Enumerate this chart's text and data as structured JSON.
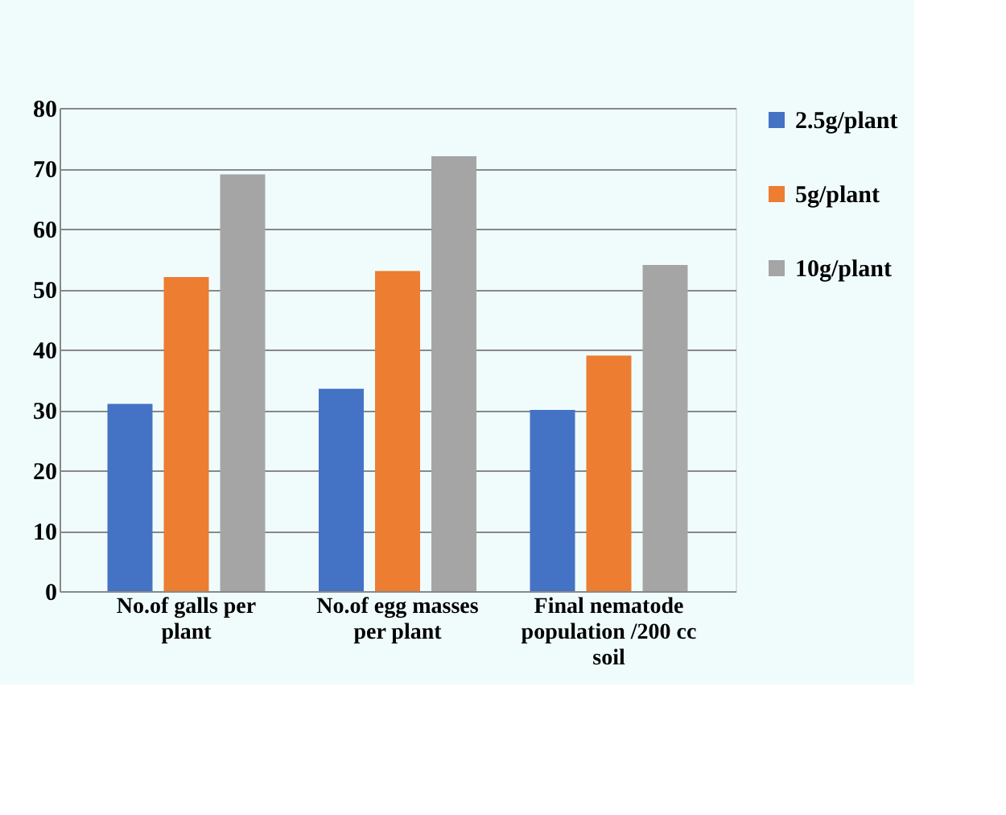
{
  "chart_data": {
    "type": "bar",
    "categories": [
      "No.of galls per plant",
      "No.of egg masses per plant",
      "Final nematode population /200 cc soil"
    ],
    "series": [
      {
        "name": "2.5g/plant",
        "color": "#4472c4",
        "values": [
          31,
          33.5,
          30
        ]
      },
      {
        "name": "5g/plant",
        "color": "#ed7d31",
        "values": [
          52,
          53,
          39
        ]
      },
      {
        "name": "10g/plant",
        "color": "#a5a5a5",
        "values": [
          69,
          72,
          54
        ]
      }
    ],
    "ylim": [
      0,
      80
    ],
    "yticks": [
      0,
      10,
      20,
      30,
      40,
      50,
      60,
      70,
      80
    ],
    "grid": "y",
    "legend": "right"
  }
}
